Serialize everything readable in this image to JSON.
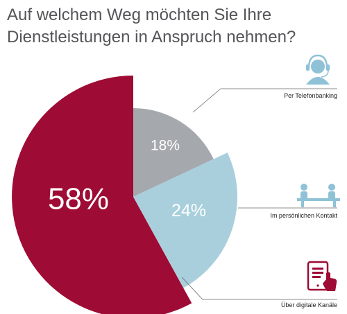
{
  "title": {
    "line1": "Auf welchem Weg möchten Sie Ihre",
    "line2": "Dienstleistungen in  Anspruch nehmen?"
  },
  "colors": {
    "digital": "#9e0b34",
    "telefon": "#a5a9ae",
    "persoenlich": "#a9cfdc",
    "icon": "#8fc2d6",
    "leader": "#666666"
  },
  "chart_data": {
    "type": "pie",
    "title": "Auf welchem Weg möchten Sie Ihre Dienstleistungen in  Anspruch nehmen?",
    "slices": [
      {
        "label": "Per Telefonbanking",
        "value": 18,
        "value_label": "18%",
        "color": "#a5a9ae",
        "icon": "headset-user-icon"
      },
      {
        "label": "Im persönlichen Kontakt",
        "value": 24,
        "value_label": "24%",
        "color": "#a9cfdc",
        "icon": "meeting-table-icon"
      },
      {
        "label": "Über digitale Kanäle",
        "value": 58,
        "value_label": "58%",
        "color": "#9e0b34",
        "icon": "tablet-touch-icon"
      }
    ]
  }
}
